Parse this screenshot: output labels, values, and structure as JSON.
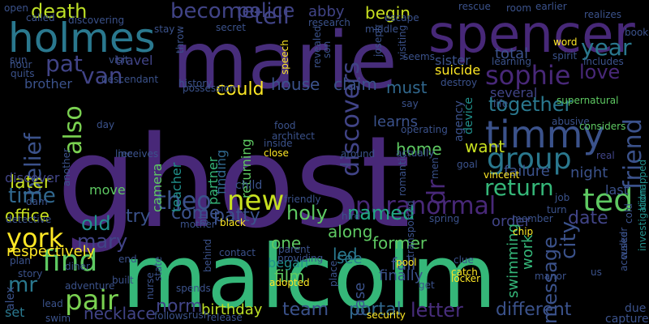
{
  "words": [
    {
      "t": "ghost",
      "c": "#482878"
    },
    {
      "t": "malcolm",
      "c": "#35b779"
    },
    {
      "t": "marie",
      "c": "#472d7b"
    },
    {
      "t": "spencer",
      "c": "#472878"
    },
    {
      "t": "holmes",
      "c": "#2a788e"
    },
    {
      "t": "timmy",
      "c": "#3b528b"
    },
    {
      "t": "group",
      "c": "#2a788e"
    },
    {
      "t": "ted",
      "c": "#5ec962"
    },
    {
      "t": "new",
      "c": "#c8e020"
    },
    {
      "t": "theo",
      "c": "#3b528b"
    },
    {
      "t": "find",
      "c": "#5ec962"
    },
    {
      "t": "york",
      "c": "#fde725"
    },
    {
      "t": "pair",
      "c": "#7ad151"
    },
    {
      "t": "paranormal",
      "c": "#482878"
    },
    {
      "t": "holy",
      "c": "#5ec962"
    },
    {
      "t": "named",
      "c": "#22a884"
    },
    {
      "t": "return",
      "c": "#35b779"
    },
    {
      "t": "friend",
      "c": "#3b528b"
    },
    {
      "t": "sophie",
      "c": "#482878"
    },
    {
      "t": "year",
      "c": "#2a788e"
    },
    {
      "t": "love",
      "c": "#482878"
    },
    {
      "t": "pat",
      "c": "#414487"
    },
    {
      "t": "van",
      "c": "#414487"
    },
    {
      "t": "police",
      "c": "#414487"
    },
    {
      "t": "become",
      "c": "#414487"
    },
    {
      "t": "tell",
      "c": "#414487"
    },
    {
      "t": "death",
      "c": "#bddf26"
    },
    {
      "t": "also",
      "c": "#7ad151"
    },
    {
      "t": "belief",
      "c": "#3b528b"
    },
    {
      "t": "time",
      "c": "#31688e"
    },
    {
      "t": "discovers",
      "c": "#414487"
    },
    {
      "t": "together",
      "c": "#2a788e"
    },
    {
      "t": "city",
      "c": "#3b528b"
    },
    {
      "t": "message",
      "c": "#3b528b"
    },
    {
      "t": "date",
      "c": "#414487"
    },
    {
      "t": "different",
      "c": "#3b528b"
    },
    {
      "t": "letter",
      "c": "#472d7b"
    },
    {
      "t": "portal",
      "c": "#31688e"
    },
    {
      "t": "team",
      "c": "#3b528b"
    },
    {
      "t": "birthday",
      "c": "#bddf26"
    },
    {
      "t": "norm",
      "c": "#414487"
    },
    {
      "t": "necklace",
      "c": "#414487"
    },
    {
      "t": "mr",
      "c": "#2a788e"
    },
    {
      "t": "mary",
      "c": "#414487"
    },
    {
      "t": "old",
      "c": "#21918c"
    },
    {
      "t": "office",
      "c": "#c8e020"
    },
    {
      "t": "come",
      "c": "#3b528b"
    },
    {
      "t": "patty",
      "c": "#3b528b"
    },
    {
      "t": "try",
      "c": "#3b528b"
    },
    {
      "t": "respectively",
      "c": "#fde725"
    },
    {
      "t": "could",
      "c": "#fde725"
    },
    {
      "t": "house",
      "c": "#3b528b"
    },
    {
      "t": "claim",
      "c": "#3b528b"
    },
    {
      "t": "must",
      "c": "#31688e"
    },
    {
      "t": "learns",
      "c": "#3b528b"
    },
    {
      "t": "home",
      "c": "#5ec962"
    },
    {
      "t": "want",
      "c": "#c8e020"
    },
    {
      "t": "failure",
      "c": "#3b528b"
    },
    {
      "t": "night",
      "c": "#3b528b"
    },
    {
      "t": "last",
      "c": "#3b528b"
    },
    {
      "t": "order",
      "c": "#414487"
    },
    {
      "t": "work",
      "c": "#35b779"
    },
    {
      "t": "former",
      "c": "#5ec962"
    },
    {
      "t": "along",
      "c": "#5ec962"
    },
    {
      "t": "led",
      "c": "#2a788e"
    },
    {
      "t": "see",
      "c": "#2a788e"
    },
    {
      "t": "fall",
      "c": "#3b528b"
    },
    {
      "t": "finally",
      "c": "#3b528b"
    },
    {
      "t": "film",
      "c": "#5ec962"
    },
    {
      "t": "one",
      "c": "#5ec962"
    },
    {
      "t": "began",
      "c": "#21918c"
    },
    {
      "t": "case",
      "c": "#3b528b"
    },
    {
      "t": "swimming",
      "c": "#35b779"
    },
    {
      "t": "total",
      "c": "#3b528b"
    },
    {
      "t": "sister",
      "c": "#3b528b"
    },
    {
      "t": "suicide",
      "c": "#fde725"
    },
    {
      "t": "several",
      "c": "#414487"
    },
    {
      "t": "begin",
      "c": "#c8e020"
    },
    {
      "t": "abby",
      "c": "#414487"
    },
    {
      "t": "travel",
      "c": "#414487"
    },
    {
      "t": "brother",
      "c": "#3b528b"
    },
    {
      "t": "later",
      "c": "#c8e020"
    },
    {
      "t": "discover",
      "c": "#414487"
    },
    {
      "t": "move",
      "c": "#5ec962"
    },
    {
      "t": "finding",
      "c": "#31688e"
    },
    {
      "t": "returning",
      "c": "#5ec962"
    },
    {
      "t": "child",
      "c": "#3b528b"
    },
    {
      "t": "camera",
      "c": "#5ec962"
    },
    {
      "t": "teacher",
      "c": "#21918c"
    },
    {
      "t": "set",
      "c": "#2a788e"
    },
    {
      "t": "alex",
      "c": "#3b528b"
    },
    {
      "t": "dr",
      "c": "#482878"
    },
    {
      "t": "partner",
      "c": "#35b779"
    },
    {
      "t": "book",
      "c": "#3b528b"
    },
    {
      "t": "due",
      "c": "#3b528b"
    },
    {
      "t": "capture",
      "c": "#3b528b"
    },
    {
      "t": "real",
      "c": "#414487"
    },
    {
      "t": "kidnapped",
      "c": "#21918c"
    },
    {
      "t": "investigation",
      "c": "#21918c"
    },
    {
      "t": "supernatural",
      "c": "#5ec962"
    },
    {
      "t": "abusive",
      "c": "#3b528b"
    },
    {
      "t": "considers",
      "c": "#5ec962"
    },
    {
      "t": "agency",
      "c": "#3b528b"
    },
    {
      "t": "device",
      "c": "#21918c"
    },
    {
      "t": "life",
      "c": "#3b528b"
    },
    {
      "t": "say",
      "c": "#3b528b"
    },
    {
      "t": "open",
      "c": "#3b528b"
    },
    {
      "t": "called",
      "c": "#3b528b"
    },
    {
      "t": "discovering",
      "c": "#3b528b"
    },
    {
      "t": "stay",
      "c": "#3b528b"
    },
    {
      "t": "throw",
      "c": "#3b528b"
    },
    {
      "t": "secret",
      "c": "#3b528b"
    },
    {
      "t": "research",
      "c": "#3b528b"
    },
    {
      "t": "middle",
      "c": "#3b528b"
    },
    {
      "t": "escape",
      "c": "#3b528b"
    },
    {
      "t": "rescue",
      "c": "#3b528b"
    },
    {
      "t": "room",
      "c": "#3b528b"
    },
    {
      "t": "earlier",
      "c": "#3b528b"
    },
    {
      "t": "realizes",
      "c": "#3b528b"
    },
    {
      "t": "word",
      "c": "#fde725"
    },
    {
      "t": "includes",
      "c": "#3b528b"
    },
    {
      "t": "spirit",
      "c": "#3b528b"
    },
    {
      "t": "learning",
      "c": "#3b528b"
    },
    {
      "t": "seems",
      "c": "#3b528b"
    },
    {
      "t": "destroy",
      "c": "#3b528b"
    },
    {
      "t": "sun",
      "c": "#3b528b"
    },
    {
      "t": "quits",
      "c": "#3b528b"
    },
    {
      "t": "hour",
      "c": "#3b528b"
    },
    {
      "t": "visit",
      "c": "#3b528b"
    },
    {
      "t": "descendant",
      "c": "#3b528b"
    },
    {
      "t": "history",
      "c": "#3b528b"
    },
    {
      "t": "possession",
      "c": "#3b528b"
    },
    {
      "t": "speech",
      "c": "#fde725"
    },
    {
      "t": "revealed",
      "c": "#3b528b"
    },
    {
      "t": "son",
      "c": "#3b528b"
    },
    {
      "t": "joseph",
      "c": "#3b528b"
    },
    {
      "t": "visiting",
      "c": "#3b528b"
    },
    {
      "t": "dam",
      "c": "#3b528b"
    },
    {
      "t": "another",
      "c": "#3b528b"
    },
    {
      "t": "day",
      "c": "#3b528b"
    },
    {
      "t": "receives",
      "c": "#3b528b"
    },
    {
      "t": "line",
      "c": "#3b528b"
    },
    {
      "t": "food",
      "c": "#3b528b"
    },
    {
      "t": "architect",
      "c": "#3b528b"
    },
    {
      "t": "inside",
      "c": "#3b528b"
    },
    {
      "t": "close",
      "c": "#fde725"
    },
    {
      "t": "around",
      "c": "#3b528b"
    },
    {
      "t": "operating",
      "c": "#3b528b"
    },
    {
      "t": "actually",
      "c": "#3b528b"
    },
    {
      "t": "goal",
      "c": "#3b528b"
    },
    {
      "t": "vincent",
      "c": "#fde725"
    },
    {
      "t": "romantic",
      "c": "#3b528b"
    },
    {
      "t": "men",
      "c": "#3b528b"
    },
    {
      "t": "friendly",
      "c": "#3b528b"
    },
    {
      "t": "hire",
      "c": "#3b528b"
    },
    {
      "t": "spring",
      "c": "#3b528b"
    },
    {
      "t": "member",
      "c": "#3b528b"
    },
    {
      "t": "job",
      "c": "#3b528b"
    },
    {
      "t": "chip",
      "c": "#fde725"
    },
    {
      "t": "turn",
      "c": "#3b528b"
    },
    {
      "t": "cold",
      "c": "#3b528b"
    },
    {
      "t": "detective",
      "c": "#3b528b"
    },
    {
      "t": "mother",
      "c": "#3b528b"
    },
    {
      "t": "black",
      "c": "#fde725"
    },
    {
      "t": "girl",
      "c": "#3b528b"
    },
    {
      "t": "contact",
      "c": "#3b528b"
    },
    {
      "t": "parent",
      "c": "#3b528b"
    },
    {
      "t": "providing",
      "c": "#3b528b"
    },
    {
      "t": "adopted",
      "c": "#fde725"
    },
    {
      "t": "transported",
      "c": "#3b528b"
    },
    {
      "t": "pool",
      "c": "#fde725"
    },
    {
      "t": "clue",
      "c": "#3b528b"
    },
    {
      "t": "catch",
      "c": "#fde725"
    },
    {
      "t": "locker",
      "c": "#fde725"
    },
    {
      "t": "manor",
      "c": "#3b528b"
    },
    {
      "t": "accused",
      "c": "#3b528b"
    },
    {
      "t": "walker",
      "c": "#3b528b"
    },
    {
      "t": "us",
      "c": "#3b528b"
    },
    {
      "t": "plan",
      "c": "#3b528b"
    },
    {
      "t": "story",
      "c": "#3b528b"
    },
    {
      "t": "diner",
      "c": "#3b528b"
    },
    {
      "t": "end",
      "c": "#3b528b"
    },
    {
      "t": "built",
      "c": "#3b528b"
    },
    {
      "t": "state",
      "c": "#3b528b"
    },
    {
      "t": "nurse",
      "c": "#3b528b"
    },
    {
      "t": "spends",
      "c": "#3b528b"
    },
    {
      "t": "behind",
      "c": "#3b528b"
    },
    {
      "t": "adventure",
      "c": "#3b528b"
    },
    {
      "t": "lead",
      "c": "#3b528b"
    },
    {
      "t": "swim",
      "c": "#3b528b"
    },
    {
      "t": "follows",
      "c": "#3b528b"
    },
    {
      "t": "rush",
      "c": "#3b528b"
    },
    {
      "t": "release",
      "c": "#3b528b"
    },
    {
      "t": "place",
      "c": "#3b528b"
    },
    {
      "t": "security",
      "c": "#fde725"
    },
    {
      "t": "get",
      "c": "#3b528b"
    }
  ]
}
